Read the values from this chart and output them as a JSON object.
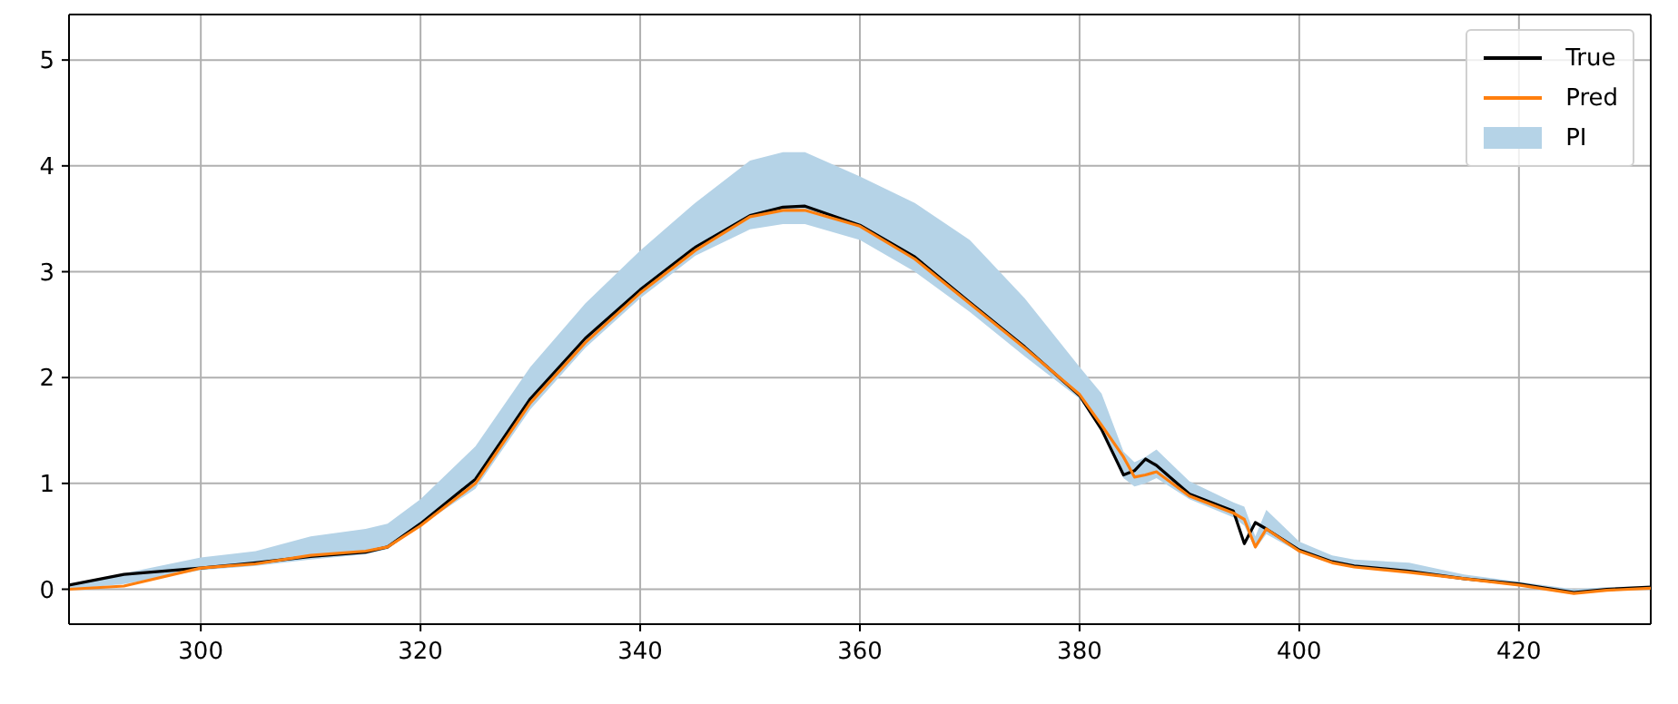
{
  "chart_data": {
    "type": "line",
    "x": [
      288,
      293,
      300,
      305,
      310,
      315,
      317,
      320,
      325,
      330,
      335,
      340,
      345,
      350,
      353,
      355,
      360,
      365,
      370,
      375,
      380,
      382,
      384,
      385,
      386,
      387,
      390,
      394,
      395,
      396,
      397,
      400,
      403,
      405,
      410,
      415,
      420,
      425,
      428,
      432
    ],
    "series": [
      {
        "name": "True",
        "color": "#000000",
        "values": [
          0.04,
          0.14,
          0.2,
          0.25,
          0.31,
          0.35,
          0.4,
          0.62,
          1.04,
          1.8,
          2.37,
          2.83,
          3.23,
          3.53,
          3.61,
          3.62,
          3.44,
          3.14,
          2.71,
          2.29,
          1.83,
          1.51,
          1.08,
          1.12,
          1.23,
          1.17,
          0.9,
          0.74,
          0.43,
          0.63,
          0.57,
          0.37,
          0.26,
          0.22,
          0.17,
          0.1,
          0.05,
          -0.03,
          0.0,
          0.02
        ]
      },
      {
        "name": "Pred",
        "color": "#ff7f0e",
        "values": [
          0.0,
          0.03,
          0.2,
          0.24,
          0.32,
          0.36,
          0.4,
          0.6,
          1.0,
          1.76,
          2.33,
          2.8,
          3.2,
          3.52,
          3.58,
          3.58,
          3.43,
          3.12,
          2.7,
          2.28,
          1.84,
          1.55,
          1.25,
          1.06,
          1.08,
          1.11,
          0.88,
          0.72,
          0.66,
          0.4,
          0.57,
          0.36,
          0.25,
          0.21,
          0.16,
          0.1,
          0.04,
          -0.04,
          -0.01,
          0.01
        ]
      },
      {
        "name": "PI",
        "type": "area",
        "color": "#b5d3e7",
        "values": [
          null,
          null,
          null,
          null,
          null,
          null,
          null,
          null,
          null,
          null,
          null,
          null,
          null,
          null,
          null,
          null,
          null,
          null,
          null,
          null,
          null,
          null,
          null,
          null,
          null,
          null,
          null,
          null,
          null,
          null,
          null,
          null,
          null,
          null,
          null,
          null,
          null,
          null,
          null,
          null
        ],
        "lower": [
          0.0,
          0.05,
          0.18,
          0.22,
          0.28,
          0.33,
          0.38,
          0.6,
          0.95,
          1.7,
          2.28,
          2.75,
          3.15,
          3.4,
          3.45,
          3.45,
          3.3,
          3.0,
          2.62,
          2.2,
          1.8,
          1.5,
          1.05,
          0.97,
          1.0,
          1.05,
          0.85,
          0.68,
          0.6,
          0.38,
          0.52,
          0.35,
          0.24,
          0.21,
          0.16,
          0.09,
          0.03,
          -0.05,
          -0.02,
          0.0
        ],
        "upper": [
          0.05,
          0.15,
          0.3,
          0.36,
          0.5,
          0.57,
          0.62,
          0.85,
          1.35,
          2.1,
          2.7,
          3.2,
          3.65,
          4.05,
          4.13,
          4.13,
          3.9,
          3.65,
          3.3,
          2.75,
          2.1,
          1.85,
          1.3,
          1.2,
          1.25,
          1.32,
          1.02,
          0.82,
          0.78,
          0.5,
          0.75,
          0.45,
          0.32,
          0.28,
          0.25,
          0.14,
          0.07,
          0.0,
          0.02,
          0.03
        ]
      }
    ],
    "xlim": [
      288,
      432
    ],
    "ylim": [
      -0.33,
      5.43
    ],
    "xticks": [
      300,
      320,
      340,
      360,
      380,
      400,
      420
    ],
    "yticks": [
      0,
      1,
      2,
      3,
      4,
      5
    ],
    "grid": true,
    "legend": "top right",
    "line_style": "solid"
  }
}
